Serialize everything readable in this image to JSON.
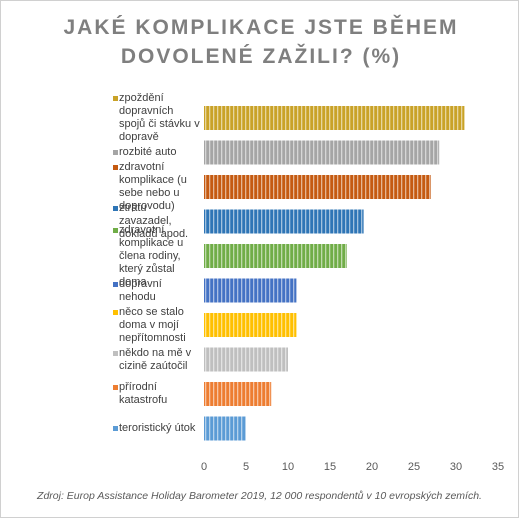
{
  "chart_data": {
    "type": "hbar",
    "title": "JAKÉ KOMPLIKACE JSTE BĚHEM DOVOLENÉ ZAŽILI? (%)",
    "categories": [
      "zpoždění dopravních spojů či stávku v dopravě",
      "rozbité auto",
      "zdravotní komplikace (u sebe nebo u doprovodu)",
      "ztrátu zavazadel, dokladů apod.",
      "zdravotní komplikace u člena rodiny, který zůstal doma",
      "dopravní nehodu",
      "něco se stalo doma v mojí nepřítomnosti",
      "někdo na mě v cizině zaútočil",
      "přírodní katastrofu",
      "teroristický útok"
    ],
    "values": [
      31,
      28,
      27,
      19,
      17,
      11,
      11,
      10,
      8,
      5
    ],
    "colors": [
      "#c9a227",
      "#a5a5a5",
      "#c55a11",
      "#2e75b6",
      "#70ad47",
      "#4472c4",
      "#ffc000",
      "#bfbfbf",
      "#ed7d31",
      "#5b9bd5"
    ],
    "xlim": [
      0,
      35
    ],
    "xticks": [
      0,
      5,
      10,
      15,
      20,
      25,
      30,
      35
    ],
    "grid": false,
    "source": "Zdroj: Europ Assistance Holiday Barometer 2019, 12 000 respondentů v 10 evropských zemích."
  }
}
